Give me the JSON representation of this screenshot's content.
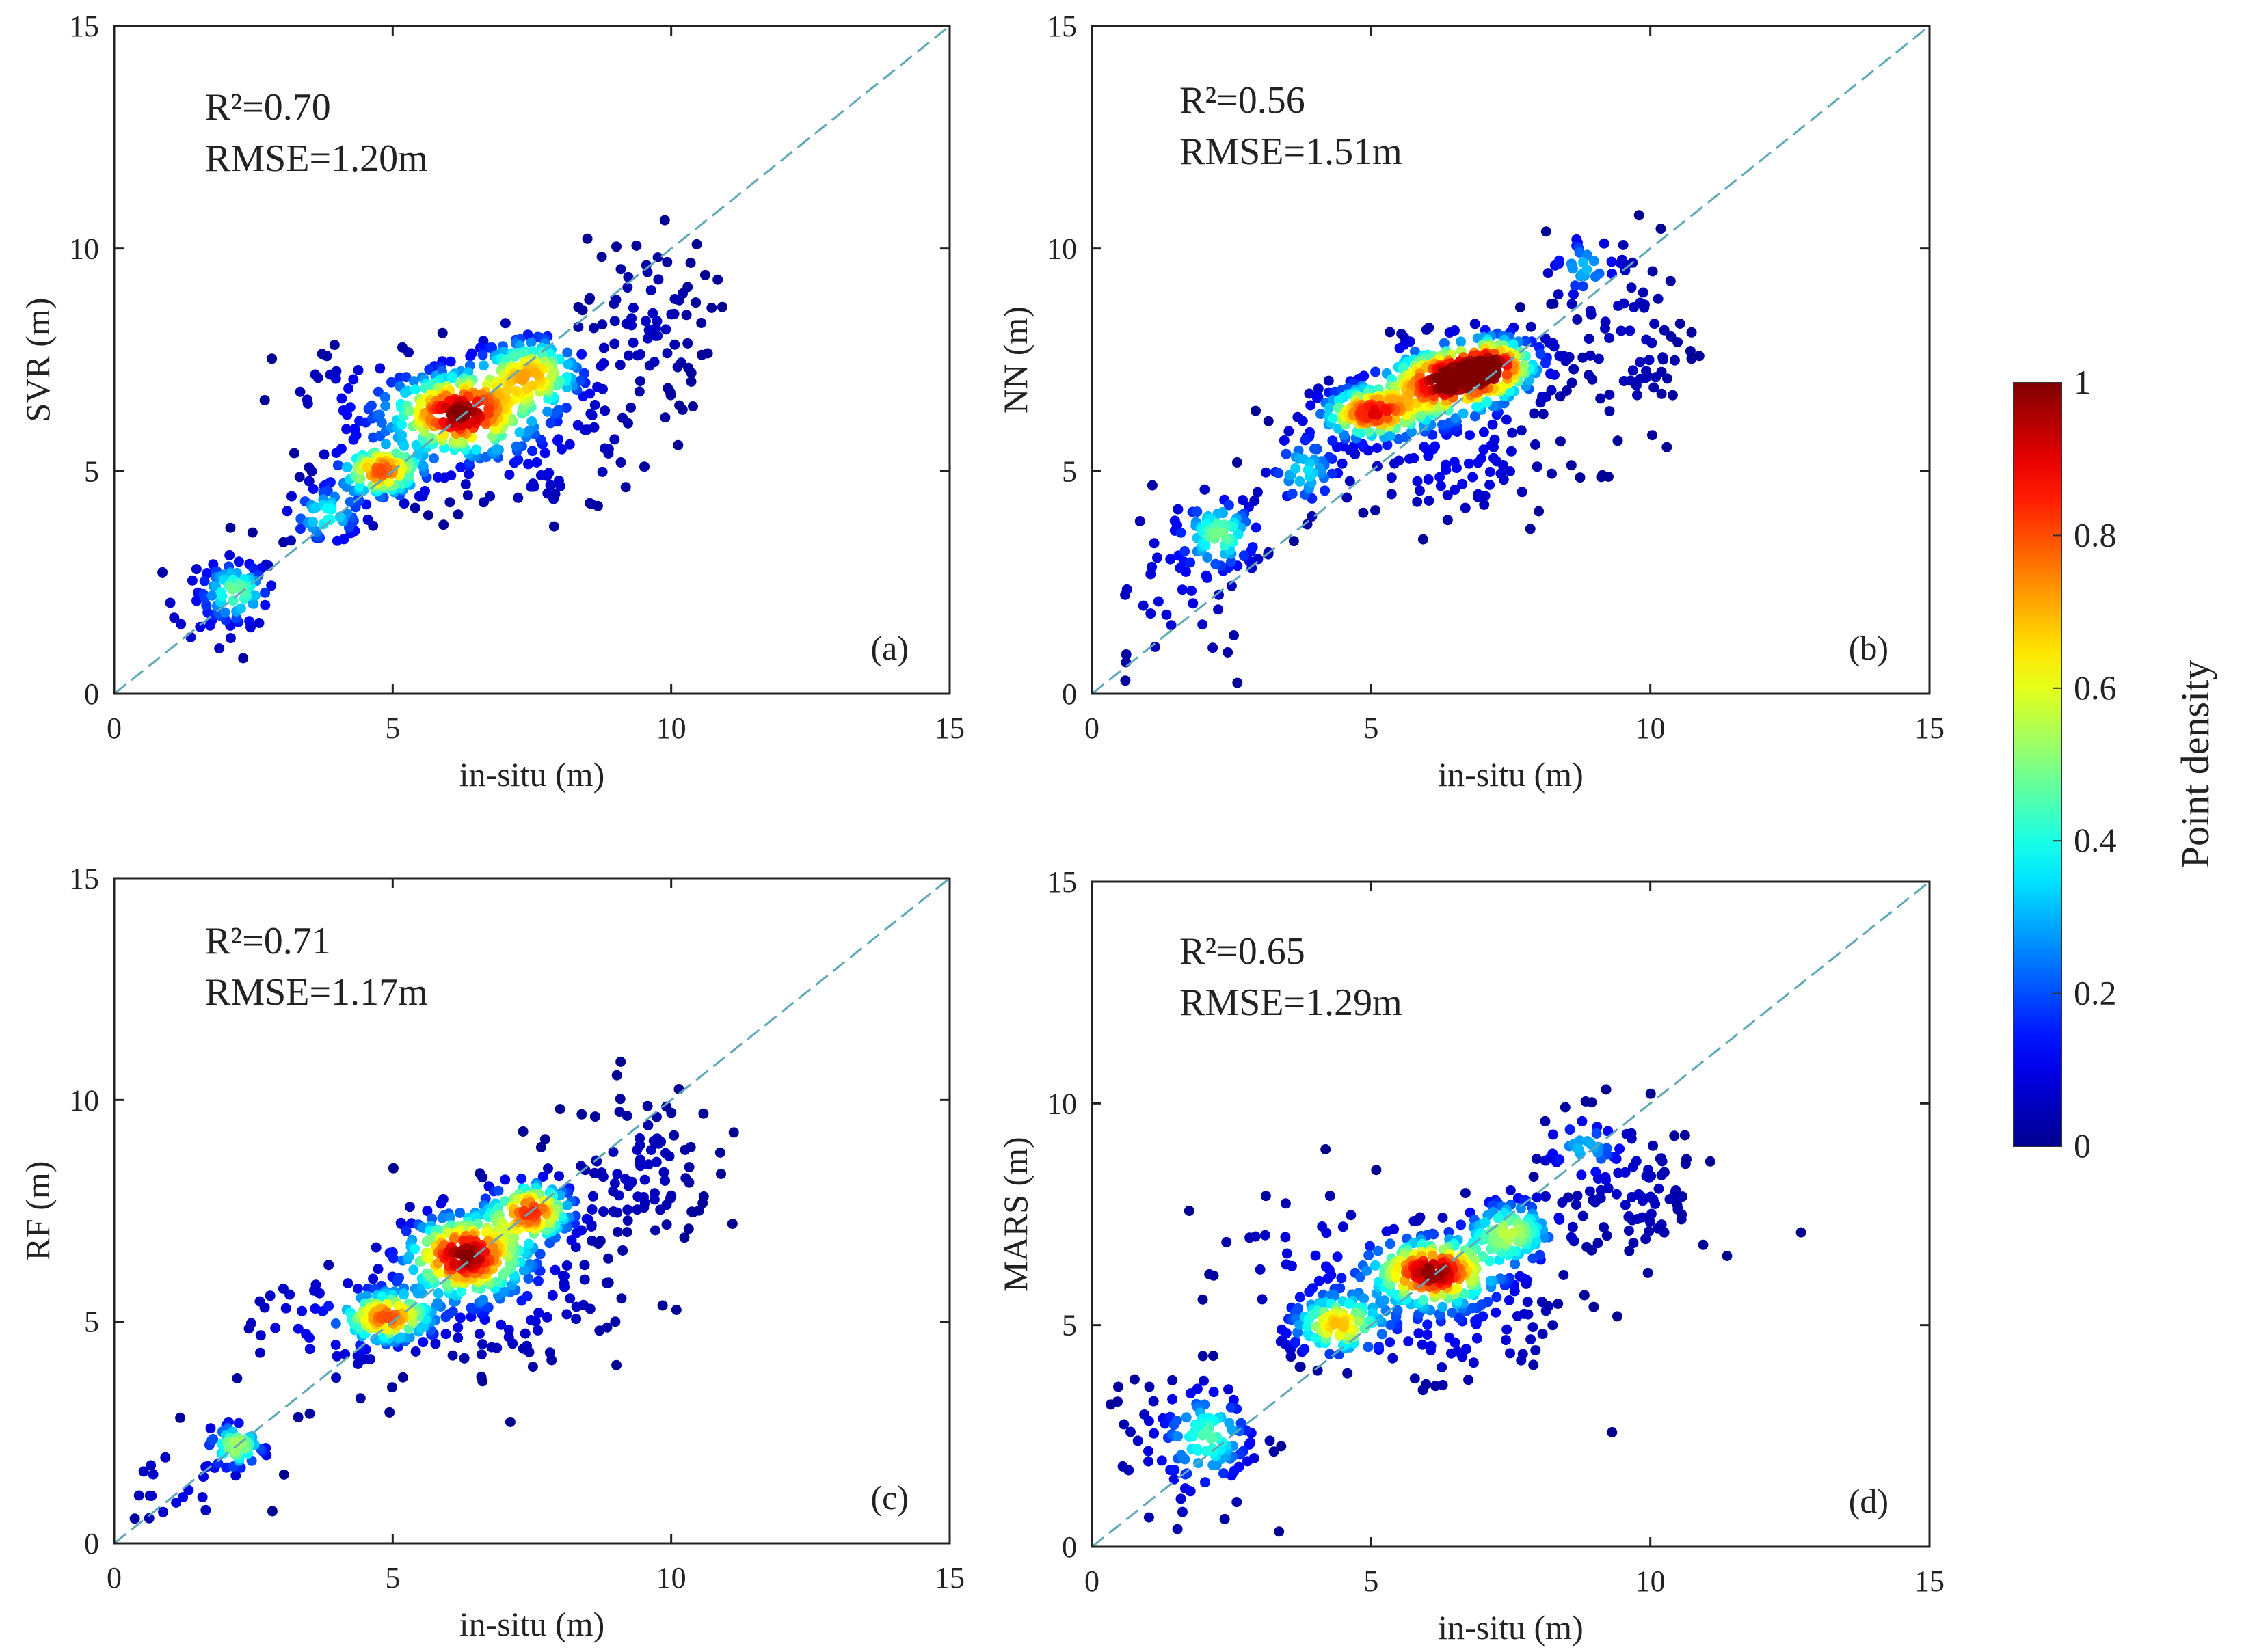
{
  "figure": {
    "colorbar": {
      "label": "Point density",
      "ticks": [
        "0",
        "0.2",
        "0.4",
        "0.6",
        "0.8",
        "1"
      ],
      "range": [
        0,
        1
      ],
      "colors": [
        "#00008f",
        "#0000ff",
        "#00ffff",
        "#ffff00",
        "#ff0000",
        "#800000"
      ]
    }
  },
  "chart_data": [
    {
      "type": "scatter",
      "panel": "(a)",
      "xlabel": "in-situ (m)",
      "ylabel": "SVR (m)",
      "xlim": [
        0,
        15
      ],
      "ylim": [
        0,
        15
      ],
      "xticks": [
        "0",
        "5",
        "10",
        "15"
      ],
      "yticks": [
        "0",
        "5",
        "10",
        "15"
      ],
      "r2_text": "R²=0.70",
      "rmse_text": "RMSE=1.20m",
      "reference_line": "1:1",
      "clusters": [
        {
          "cx": 2.2,
          "cy": 2.3,
          "sx": 0.35,
          "sy": 0.4,
          "peak": 0.45,
          "n": 70
        },
        {
          "cx": 3.8,
          "cy": 4.0,
          "sx": 0.4,
          "sy": 0.4,
          "peak": 0.4,
          "n": 50
        },
        {
          "cx": 4.8,
          "cy": 5.0,
          "sx": 0.45,
          "sy": 0.35,
          "peak": 0.78,
          "n": 130
        },
        {
          "cx": 6.2,
          "cy": 6.3,
          "sx": 0.7,
          "sy": 0.55,
          "peak": 0.95,
          "n": 260
        },
        {
          "cx": 7.5,
          "cy": 7.2,
          "sx": 0.55,
          "sy": 0.5,
          "peak": 0.65,
          "n": 150
        },
        {
          "cx": 7.5,
          "cy": 5.5,
          "sx": 1.1,
          "sy": 0.9,
          "peak": 0.1,
          "n": 90
        },
        {
          "cx": 9.5,
          "cy": 8.3,
          "sx": 0.6,
          "sy": 1.0,
          "peak": 0.06,
          "n": 80
        },
        {
          "cx": 1.5,
          "cy": 1.8,
          "sx": 0.7,
          "sy": 0.9,
          "peak": 0.08,
          "n": 25
        },
        {
          "cx": 4.5,
          "cy": 6.5,
          "sx": 0.8,
          "sy": 0.7,
          "peak": 0.12,
          "n": 40
        }
      ]
    },
    {
      "type": "scatter",
      "panel": "(b)",
      "xlabel": "in-situ (m)",
      "ylabel": "NN (m)",
      "xlim": [
        0,
        15
      ],
      "ylim": [
        0,
        15
      ],
      "xticks": [
        "0",
        "5",
        "10",
        "15"
      ],
      "yticks": [
        "0",
        "5",
        "10",
        "15"
      ],
      "r2_text": "R²=0.56",
      "rmse_text": "RMSE=1.51m",
      "reference_line": "1:1",
      "clusters": [
        {
          "cx": 2.3,
          "cy": 3.6,
          "sx": 0.4,
          "sy": 0.45,
          "peak": 0.45,
          "n": 80
        },
        {
          "cx": 3.8,
          "cy": 5.0,
          "sx": 0.4,
          "sy": 0.5,
          "peak": 0.35,
          "n": 45
        },
        {
          "cx": 5.0,
          "cy": 6.3,
          "sx": 0.55,
          "sy": 0.35,
          "peak": 0.85,
          "n": 170
        },
        {
          "cx": 6.3,
          "cy": 7.0,
          "sx": 0.65,
          "sy": 0.45,
          "peak": 0.95,
          "n": 220
        },
        {
          "cx": 7.2,
          "cy": 7.4,
          "sx": 0.5,
          "sy": 0.4,
          "peak": 0.8,
          "n": 130
        },
        {
          "cx": 6.5,
          "cy": 5.2,
          "sx": 1.0,
          "sy": 0.8,
          "peak": 0.12,
          "n": 90
        },
        {
          "cx": 9.5,
          "cy": 8.0,
          "sx": 0.7,
          "sy": 1.3,
          "peak": 0.06,
          "n": 90
        },
        {
          "cx": 1.5,
          "cy": 2.5,
          "sx": 0.8,
          "sy": 1.3,
          "peak": 0.1,
          "n": 40
        },
        {
          "cx": 8.8,
          "cy": 9.6,
          "sx": 0.35,
          "sy": 0.4,
          "peak": 0.3,
          "n": 25
        }
      ]
    },
    {
      "type": "scatter",
      "panel": "(c)",
      "xlabel": "in-situ (m)",
      "ylabel": "RF (m)",
      "xlim": [
        0,
        15
      ],
      "ylim": [
        0,
        15
      ],
      "xticks": [
        "0",
        "5",
        "10",
        "15"
      ],
      "yticks": [
        "0",
        "5",
        "10",
        "15"
      ],
      "r2_text": "R²=0.71",
      "rmse_text": "RMSE=1.17m",
      "reference_line": "1:1",
      "clusters": [
        {
          "cx": 2.2,
          "cy": 2.2,
          "sx": 0.3,
          "sy": 0.3,
          "peak": 0.55,
          "n": 55
        },
        {
          "cx": 1.2,
          "cy": 1.3,
          "sx": 0.6,
          "sy": 0.7,
          "peak": 0.1,
          "n": 20
        },
        {
          "cx": 4.9,
          "cy": 5.1,
          "sx": 0.5,
          "sy": 0.35,
          "peak": 0.75,
          "n": 140
        },
        {
          "cx": 6.3,
          "cy": 6.5,
          "sx": 0.65,
          "sy": 0.55,
          "peak": 0.95,
          "n": 250
        },
        {
          "cx": 7.5,
          "cy": 7.5,
          "sx": 0.45,
          "sy": 0.4,
          "peak": 0.8,
          "n": 130
        },
        {
          "cx": 7.0,
          "cy": 5.5,
          "sx": 1.2,
          "sy": 0.9,
          "peak": 0.1,
          "n": 100
        },
        {
          "cx": 9.4,
          "cy": 8.4,
          "sx": 0.7,
          "sy": 1.0,
          "peak": 0.06,
          "n": 100
        },
        {
          "cx": 3.5,
          "cy": 4.8,
          "sx": 0.9,
          "sy": 1.0,
          "peak": 0.1,
          "n": 40
        }
      ]
    },
    {
      "type": "scatter",
      "panel": "(d)",
      "xlabel": "in-situ (m)",
      "ylabel": "MARS (m)",
      "xlim": [
        0,
        15
      ],
      "ylim": [
        0,
        15
      ],
      "xticks": [
        "0",
        "5",
        "10",
        "15"
      ],
      "yticks": [
        "0",
        "5",
        "10",
        "15"
      ],
      "r2_text": "R²=0.65",
      "rmse_text": "RMSE=1.29m",
      "reference_line": "1:1",
      "clusters": [
        {
          "cx": 2.1,
          "cy": 2.5,
          "sx": 0.45,
          "sy": 0.6,
          "peak": 0.4,
          "n": 80
        },
        {
          "cx": 1.5,
          "cy": 2.0,
          "sx": 0.8,
          "sy": 1.2,
          "peak": 0.08,
          "n": 45
        },
        {
          "cx": 4.4,
          "cy": 5.0,
          "sx": 0.5,
          "sy": 0.4,
          "peak": 0.65,
          "n": 120
        },
        {
          "cx": 6.1,
          "cy": 6.2,
          "sx": 0.65,
          "sy": 0.45,
          "peak": 0.95,
          "n": 220
        },
        {
          "cx": 7.5,
          "cy": 7.1,
          "sx": 0.5,
          "sy": 0.45,
          "peak": 0.55,
          "n": 110
        },
        {
          "cx": 6.5,
          "cy": 5.0,
          "sx": 1.1,
          "sy": 0.8,
          "peak": 0.12,
          "n": 90
        },
        {
          "cx": 9.7,
          "cy": 8.0,
          "sx": 0.7,
          "sy": 1.0,
          "peak": 0.06,
          "n": 100
        },
        {
          "cx": 8.8,
          "cy": 9.0,
          "sx": 0.4,
          "sy": 0.4,
          "peak": 0.3,
          "n": 25
        },
        {
          "cx": 4.0,
          "cy": 6.5,
          "sx": 1.0,
          "sy": 0.9,
          "peak": 0.1,
          "n": 40
        }
      ]
    }
  ]
}
